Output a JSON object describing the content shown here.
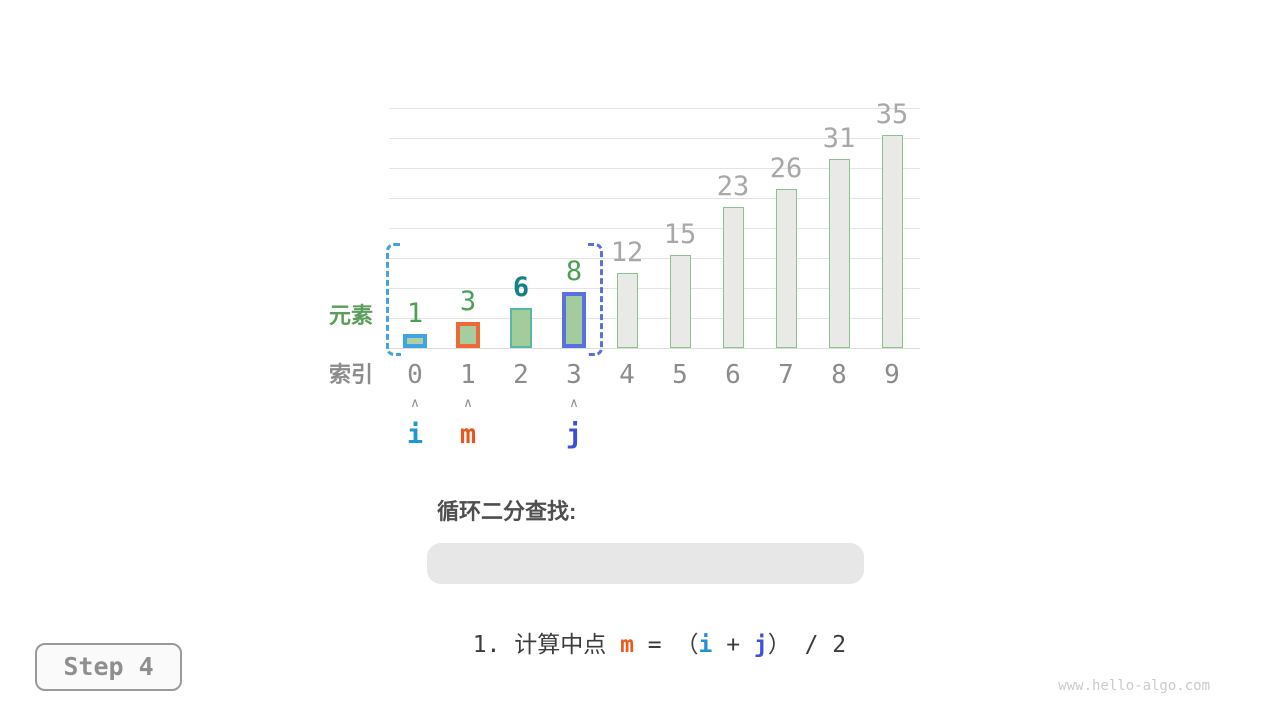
{
  "palette": {
    "pointer_i_blue": "#2196d6",
    "pointer_m_orange": "#e8551e",
    "pointer_j_indigo": "#3a50d5",
    "highlight_border_blue": "#41a3e1",
    "highlight_border_orange": "#ec6a36",
    "highlight_border_indigo": "#5b70dd",
    "bar_fill_green": "#a5cda0",
    "bar_border_teal": "#56b8a5",
    "bar_fill_gray": "#e9e9e7",
    "bar_border_light_green": "#8cc28c",
    "value_label_green": "#4f9e57",
    "value_label_teal": "#15808a",
    "value_label_gray": "#a8a8a8",
    "gridline_gray": "#e4e4e2"
  },
  "chart_data": {
    "type": "bar",
    "title": "",
    "xlabel": "索引",
    "ylabel": "元素",
    "categories": [
      "0",
      "1",
      "2",
      "3",
      "4",
      "5",
      "6",
      "7",
      "8",
      "9"
    ],
    "values": [
      1,
      3,
      6,
      8,
      12,
      15,
      23,
      26,
      31,
      35
    ],
    "ylim": [
      0,
      40
    ],
    "gridline_step": 5,
    "grid": true,
    "legend": false,
    "bar_styles": [
      "i",
      "m",
      "plain",
      "j",
      "rest",
      "rest",
      "rest",
      "rest",
      "rest",
      "rest"
    ],
    "label_styles": [
      "green",
      "green",
      "teal",
      "green",
      "gray",
      "gray",
      "gray",
      "gray",
      "gray",
      "gray"
    ],
    "search_range": {
      "from_index": 0,
      "to_index": 3
    }
  },
  "axis": {
    "elements_label": "元素",
    "index_label": "索引"
  },
  "caret_glyph": "∧",
  "pointers": [
    {
      "name": "i",
      "index": 0,
      "style": "i"
    },
    {
      "name": "m",
      "index": 1,
      "style": "m"
    },
    {
      "name": "j",
      "index": 3,
      "style": "j"
    }
  ],
  "caption": {
    "title": "循环二分查找:",
    "formula_tokens": [
      {
        "text": "1. 计算中点 ",
        "style": "dark"
      },
      {
        "text": "m",
        "style": "m"
      },
      {
        "text": " = （",
        "style": "dark"
      },
      {
        "text": "i",
        "style": "i"
      },
      {
        "text": " + ",
        "style": "dark"
      },
      {
        "text": "j",
        "style": "j"
      },
      {
        "text": "） / 2",
        "style": "dark"
      }
    ]
  },
  "step_badge": {
    "label": "Step 4"
  },
  "watermark": {
    "text": "www.hello-algo.com"
  }
}
